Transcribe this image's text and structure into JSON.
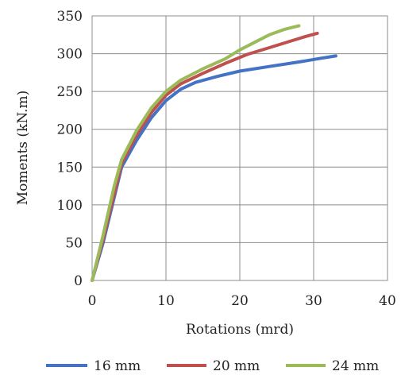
{
  "chart_data": {
    "type": "line",
    "title": "",
    "xlabel": "Rotations (mrd)",
    "ylabel": "Moments (kN.m)",
    "xlim": [
      0,
      40
    ],
    "ylim": [
      0,
      350
    ],
    "xticks": [
      0,
      10,
      20,
      30,
      40
    ],
    "yticks": [
      0,
      50,
      100,
      150,
      200,
      250,
      300,
      350
    ],
    "grid": true,
    "legend_position": "bottom",
    "series": [
      {
        "name": "16 mm",
        "color": "#4472c4",
        "points": [
          [
            0,
            0
          ],
          [
            1.5,
            50
          ],
          [
            3,
            110
          ],
          [
            4,
            150
          ],
          [
            6,
            185
          ],
          [
            8,
            215
          ],
          [
            10,
            238
          ],
          [
            12,
            253
          ],
          [
            14,
            262
          ],
          [
            17,
            270
          ],
          [
            20,
            277
          ],
          [
            24,
            283
          ],
          [
            28,
            289
          ],
          [
            31,
            294
          ],
          [
            33,
            297
          ]
        ]
      },
      {
        "name": "20 mm",
        "color": "#c0504d",
        "points": [
          [
            0,
            0
          ],
          [
            1.5,
            55
          ],
          [
            3,
            115
          ],
          [
            4,
            155
          ],
          [
            6,
            192
          ],
          [
            8,
            222
          ],
          [
            10,
            245
          ],
          [
            12,
            260
          ],
          [
            15,
            274
          ],
          [
            18,
            287
          ],
          [
            21,
            299
          ],
          [
            24,
            308
          ],
          [
            27,
            317
          ],
          [
            29,
            323
          ],
          [
            30.5,
            327
          ]
        ]
      },
      {
        "name": "24 mm",
        "color": "#9bbb59",
        "points": [
          [
            0,
            0
          ],
          [
            1.5,
            60
          ],
          [
            3,
            125
          ],
          [
            4,
            160
          ],
          [
            6,
            198
          ],
          [
            8,
            228
          ],
          [
            10,
            250
          ],
          [
            12,
            265
          ],
          [
            15,
            280
          ],
          [
            18,
            293
          ],
          [
            20,
            305
          ],
          [
            22,
            315
          ],
          [
            24,
            325
          ],
          [
            26,
            332
          ],
          [
            28,
            337
          ]
        ]
      }
    ]
  }
}
